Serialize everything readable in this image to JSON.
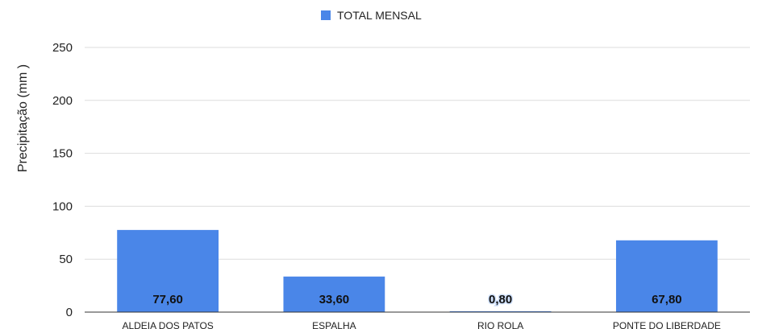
{
  "chart_data": {
    "type": "bar",
    "title": "",
    "xlabel": "",
    "ylabel": "Precipitação (mm )",
    "categories": [
      "ALDEIA DOS PATOS",
      "ESPALHA",
      "RIO ROLA",
      "PONTE DO LIBERDADE"
    ],
    "series": [
      {
        "name": "TOTAL MENSAL",
        "values": [
          77.6,
          33.6,
          0.8,
          67.8
        ],
        "labels": [
          "77,60",
          "33,60",
          "0,80",
          "67,80"
        ],
        "color": "#4a86e8"
      }
    ],
    "ylim": [
      0,
      250
    ],
    "yticks": [
      0,
      50,
      100,
      150,
      200,
      250
    ],
    "grid": true,
    "legend_position": "top"
  }
}
